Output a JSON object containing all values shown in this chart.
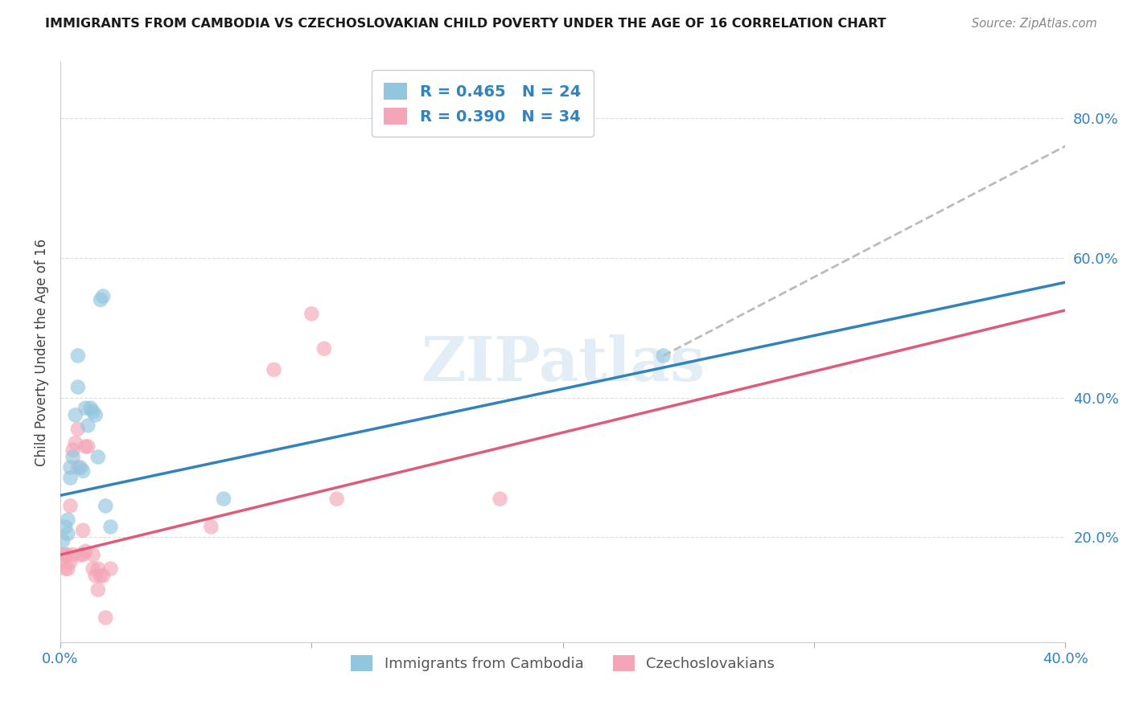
{
  "title": "IMMIGRANTS FROM CAMBODIA VS CZECHOSLOVAKIAN CHILD POVERTY UNDER THE AGE OF 16 CORRELATION CHART",
  "source": "Source: ZipAtlas.com",
  "ylabel": "Child Poverty Under the Age of 16",
  "xlim": [
    0.0,
    0.4
  ],
  "ylim": [
    0.05,
    0.88
  ],
  "yticks_right": [
    0.2,
    0.4,
    0.6,
    0.8
  ],
  "ytick_labels_right": [
    "20.0%",
    "40.0%",
    "60.0%",
    "80.0%"
  ],
  "watermark": "ZIPatlas",
  "legend_label1": "Immigrants from Cambodia",
  "legend_label2": "Czechoslovakians",
  "color_blue": "#92c5de",
  "color_pink": "#f4a6b8",
  "color_blue_line": "#3182bd",
  "color_pink_line": "#e05a7a",
  "color_dashed": "#bbbbbb",
  "scatter_blue": [
    [
      0.001,
      0.195
    ],
    [
      0.002,
      0.215
    ],
    [
      0.003,
      0.205
    ],
    [
      0.003,
      0.225
    ],
    [
      0.004,
      0.3
    ],
    [
      0.004,
      0.285
    ],
    [
      0.005,
      0.315
    ],
    [
      0.006,
      0.375
    ],
    [
      0.007,
      0.415
    ],
    [
      0.007,
      0.46
    ],
    [
      0.008,
      0.3
    ],
    [
      0.009,
      0.295
    ],
    [
      0.01,
      0.385
    ],
    [
      0.011,
      0.36
    ],
    [
      0.012,
      0.385
    ],
    [
      0.013,
      0.38
    ],
    [
      0.014,
      0.375
    ],
    [
      0.015,
      0.315
    ],
    [
      0.016,
      0.54
    ],
    [
      0.017,
      0.545
    ],
    [
      0.018,
      0.245
    ],
    [
      0.02,
      0.215
    ],
    [
      0.065,
      0.255
    ],
    [
      0.24,
      0.46
    ]
  ],
  "scatter_pink": [
    [
      0.001,
      0.165
    ],
    [
      0.001,
      0.175
    ],
    [
      0.002,
      0.175
    ],
    [
      0.002,
      0.155
    ],
    [
      0.003,
      0.175
    ],
    [
      0.003,
      0.155
    ],
    [
      0.004,
      0.165
    ],
    [
      0.004,
      0.245
    ],
    [
      0.005,
      0.325
    ],
    [
      0.005,
      0.175
    ],
    [
      0.006,
      0.335
    ],
    [
      0.007,
      0.3
    ],
    [
      0.007,
      0.355
    ],
    [
      0.008,
      0.175
    ],
    [
      0.009,
      0.21
    ],
    [
      0.009,
      0.175
    ],
    [
      0.01,
      0.33
    ],
    [
      0.01,
      0.18
    ],
    [
      0.011,
      0.33
    ],
    [
      0.013,
      0.175
    ],
    [
      0.013,
      0.155
    ],
    [
      0.014,
      0.145
    ],
    [
      0.015,
      0.125
    ],
    [
      0.015,
      0.155
    ],
    [
      0.016,
      0.145
    ],
    [
      0.017,
      0.145
    ],
    [
      0.018,
      0.085
    ],
    [
      0.02,
      0.155
    ],
    [
      0.06,
      0.215
    ],
    [
      0.085,
      0.44
    ],
    [
      0.1,
      0.52
    ],
    [
      0.105,
      0.47
    ],
    [
      0.11,
      0.255
    ],
    [
      0.175,
      0.255
    ]
  ],
  "blue_line_x": [
    0.0,
    0.4
  ],
  "blue_line_y": [
    0.26,
    0.565
  ],
  "pink_line_x": [
    0.0,
    0.4
  ],
  "pink_line_y": [
    0.175,
    0.525
  ],
  "dashed_line_x": [
    0.24,
    0.4
  ],
  "dashed_line_y": [
    0.46,
    0.76
  ]
}
